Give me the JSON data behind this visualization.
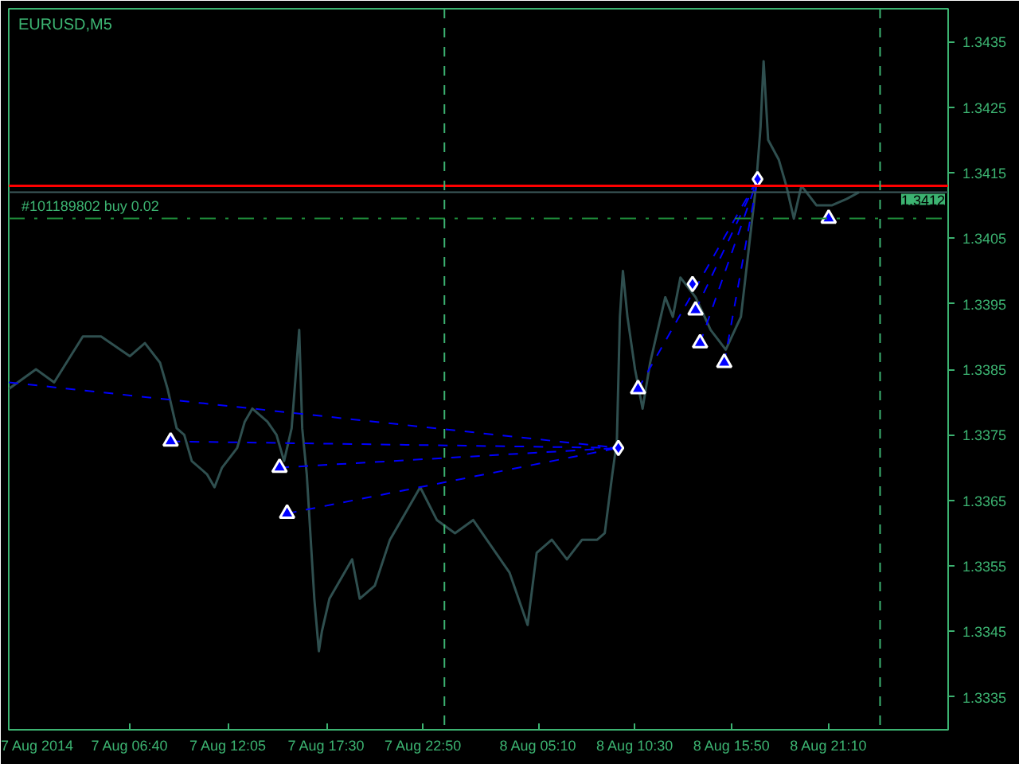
{
  "chart_data": {
    "type": "line",
    "title": "EURUSD,M5",
    "xlim": [
      "2014-08-07T00:00",
      "2014-08-09T03:45"
    ],
    "xticks": [
      {
        "value": "2014-08-07T00:00",
        "label": "7 Aug 2014"
      },
      {
        "value": "2014-08-07T06:40",
        "label": "7 Aug 06:40"
      },
      {
        "value": "2014-08-07T12:05",
        "label": "7 Aug 12:05"
      },
      {
        "value": "2014-08-07T17:30",
        "label": "7 Aug 17:30"
      },
      {
        "value": "2014-08-07T22:50",
        "label": "7 Aug 22:50"
      },
      {
        "value": "2014-08-08T05:10",
        "label": "8 Aug 05:10"
      },
      {
        "value": "2014-08-08T10:30",
        "label": "8 Aug 10:30"
      },
      {
        "value": "2014-08-08T15:50",
        "label": "8 Aug 15:50"
      },
      {
        "value": "2014-08-08T21:10",
        "label": "8 Aug 21:10"
      }
    ],
    "ylim": [
      1.333,
      1.344
    ],
    "yticks": [
      1.3335,
      1.3345,
      1.3355,
      1.3365,
      1.3375,
      1.3385,
      1.3395,
      1.3405,
      1.3415,
      1.3425,
      1.3435
    ],
    "grid": false,
    "series": [
      {
        "color": "#2f4f4f",
        "x": [
          "2014-08-07T00:00",
          "2014-08-07T01:30",
          "2014-08-07T02:30",
          "2014-08-07T04:05",
          "2014-08-07T05:05",
          "2014-08-07T06:40",
          "2014-08-07T07:30",
          "2014-08-07T08:20",
          "2014-08-07T08:45",
          "2014-08-07T09:15",
          "2014-08-07T09:40",
          "2014-08-07T10:05",
          "2014-08-07T10:55",
          "2014-08-07T11:20",
          "2014-08-07T11:45",
          "2014-08-07T12:35",
          "2014-08-07T13:00",
          "2014-08-07T13:25",
          "2014-08-07T14:15",
          "2014-08-07T14:45",
          "2014-08-07T15:10",
          "2014-08-07T15:35",
          "2014-08-07T16:00",
          "2014-08-07T16:10",
          "2014-08-07T16:25",
          "2014-08-07T16:50",
          "2014-08-07T17:05",
          "2014-08-07T17:15",
          "2014-08-07T17:40",
          "2014-08-07T18:30",
          "2014-08-07T18:55",
          "2014-08-07T19:20",
          "2014-08-07T20:10",
          "2014-08-07T21:00",
          "2014-08-07T21:50",
          "2014-08-07T22:40",
          "2014-08-07T23:35",
          "2014-08-08T00:35",
          "2014-08-08T01:35",
          "2014-08-08T02:35",
          "2014-08-08T03:35",
          "2014-08-08T04:35",
          "2014-08-08T05:05",
          "2014-08-08T05:55",
          "2014-08-08T06:45",
          "2014-08-08T07:35",
          "2014-08-08T08:25",
          "2014-08-08T08:50",
          "2014-08-08T09:15",
          "2014-08-08T09:30",
          "2014-08-08T09:40",
          "2014-08-08T09:50",
          "2014-08-08T10:05",
          "2014-08-08T10:30",
          "2014-08-08T10:55",
          "2014-08-08T11:20",
          "2014-08-08T11:45",
          "2014-08-08T12:10",
          "2014-08-08T12:35",
          "2014-08-08T13:00",
          "2014-08-08T13:50",
          "2014-08-08T14:40",
          "2014-08-08T15:30",
          "2014-08-08T16:20",
          "2014-08-08T16:45",
          "2014-08-08T17:10",
          "2014-08-08T17:25",
          "2014-08-08T17:35",
          "2014-08-08T17:50",
          "2014-08-08T18:25",
          "2014-08-08T18:50",
          "2014-08-08T19:15",
          "2014-08-08T19:40",
          "2014-08-08T20:30",
          "2014-08-08T21:20",
          "2014-08-08T22:10",
          "2014-08-08T22:50"
        ],
        "values": [
          1.3382,
          1.3385,
          1.3383,
          1.339,
          1.339,
          1.3387,
          1.3389,
          1.3386,
          1.3382,
          1.3376,
          1.3375,
          1.3371,
          1.3369,
          1.3367,
          1.337,
          1.3373,
          1.3377,
          1.3379,
          1.3377,
          1.3375,
          1.3371,
          1.3376,
          1.3391,
          1.3376,
          1.3369,
          1.335,
          1.3342,
          1.3345,
          1.335,
          1.3354,
          1.3356,
          1.335,
          1.3352,
          1.3359,
          1.3363,
          1.3367,
          1.3362,
          1.336,
          1.3362,
          1.3358,
          1.3354,
          1.3346,
          1.3357,
          1.3359,
          1.3356,
          1.3359,
          1.3359,
          1.336,
          1.3369,
          1.3374,
          1.3393,
          1.34,
          1.3393,
          1.3385,
          1.3379,
          1.3386,
          1.3391,
          1.3396,
          1.3393,
          1.3399,
          1.3396,
          1.3391,
          1.3388,
          1.3393,
          1.3403,
          1.3413,
          1.3422,
          1.3432,
          1.342,
          1.3417,
          1.3413,
          1.3408,
          1.3413,
          1.341,
          1.341,
          1.3411,
          1.3412
        ]
      },
      {
        "color": "#0000ff",
        "line_style": "dashed",
        "x": [
          "2014-08-07T00:00",
          "2014-08-08T09:35",
          null,
          "2014-08-07T08:55",
          "2014-08-08T09:35",
          null,
          "2014-08-07T14:55",
          "2014-08-08T09:35",
          null,
          "2014-08-07T15:20",
          "2014-08-08T09:35",
          null,
          "2014-08-08T10:40",
          "2014-08-08T17:15",
          null,
          "2014-08-08T13:50",
          "2014-08-08T17:15",
          null,
          "2014-08-08T14:05",
          "2014-08-08T17:15",
          null,
          "2014-08-08T15:25",
          "2014-08-08T17:15"
        ],
        "values": [
          1.3383,
          1.3373,
          null,
          1.3374,
          1.3373,
          null,
          1.337,
          1.3373,
          null,
          1.3363,
          1.3373,
          null,
          1.3382,
          1.3414,
          null,
          1.3394,
          1.3414,
          null,
          1.3389,
          1.3414,
          null,
          1.3386,
          1.3414
        ]
      },
      {
        "type": "scatter",
        "color": "#0000ff",
        "marker": "triangle",
        "x": [
          "2014-08-07T08:55",
          "2014-08-07T14:55",
          "2014-08-07T15:20",
          "2014-08-08T10:40",
          "2014-08-08T13:50",
          "2014-08-08T14:05",
          "2014-08-08T15:25",
          "2014-08-08T21:10"
        ],
        "values": [
          1.3374,
          1.337,
          1.3363,
          1.3382,
          1.3394,
          1.3389,
          1.3386,
          1.3408
        ]
      },
      {
        "type": "scatter",
        "color": "#0000ff",
        "marker": "diamond",
        "x": [
          "2014-08-08T09:35",
          "2014-08-08T13:40",
          "2014-08-08T17:15"
        ],
        "values": [
          1.3373,
          1.3398,
          1.3414
        ]
      }
    ],
    "ref_lines": [
      {
        "axis": "y",
        "value": 1.3413,
        "color": "#ff0000",
        "line_style": "solid"
      },
      {
        "axis": "y",
        "value": 1.3412,
        "color": "#3d5a5c",
        "line_style": "solid",
        "label": "1.3412"
      },
      {
        "axis": "y",
        "value": 1.3408,
        "color": "#1e8c3a",
        "line_style": "dashed",
        "label": "#101189802 buy 0.02"
      },
      {
        "axis": "x",
        "value": "2014-08-08T00:00",
        "color": "#3cb371",
        "line_style": "dashed"
      },
      {
        "axis": "x",
        "value": "2014-08-09T00:00",
        "color": "#3cb371",
        "line_style": "dashed"
      }
    ]
  }
}
